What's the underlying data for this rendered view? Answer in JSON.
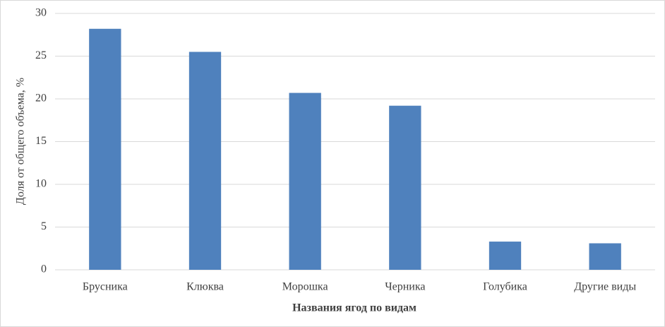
{
  "chart_data": {
    "type": "bar",
    "xlabel": "Названия ягод по видам",
    "ylabel": "Доля от общего объема, %",
    "categories": [
      "Брусника",
      "Клюква",
      "Морошка",
      "Черника",
      "Голубика",
      "Другие виды"
    ],
    "values": [
      28.2,
      25.5,
      20.7,
      19.2,
      3.3,
      3.1
    ],
    "color": "#4f81bd",
    "ylim": [
      0,
      30
    ],
    "yticks": [
      0,
      5,
      10,
      15,
      20,
      25,
      30
    ],
    "grid": true
  }
}
